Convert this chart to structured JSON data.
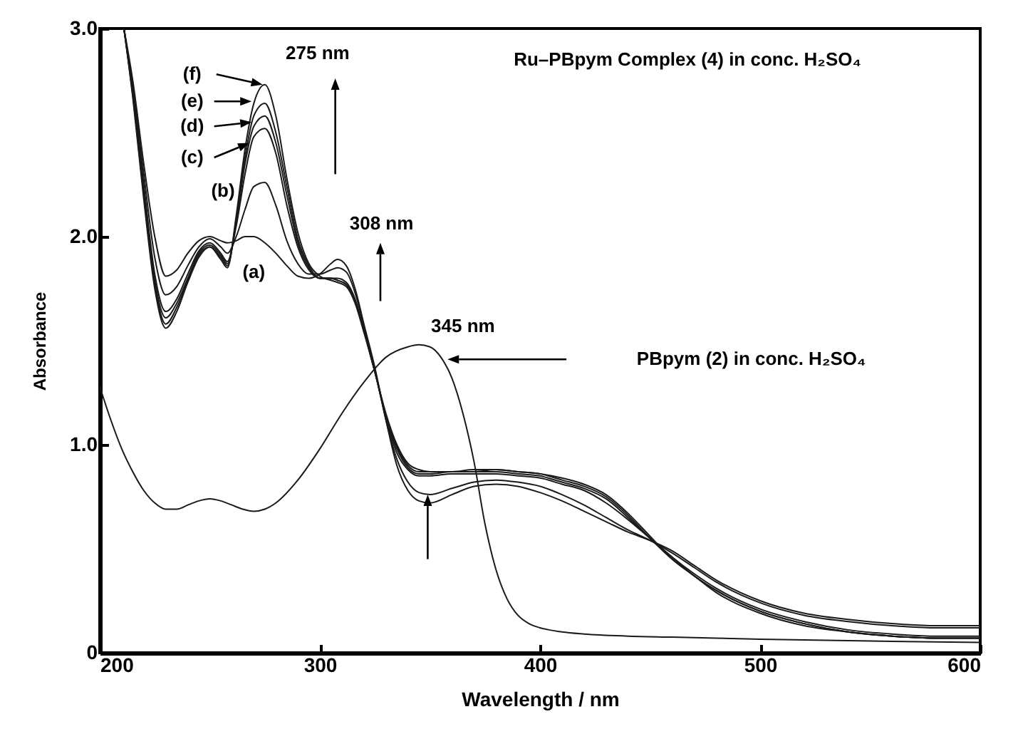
{
  "chart_data": {
    "type": "line",
    "xlabel": "Wavelength / nm",
    "ylabel": "Absorbance",
    "xlim": [
      200,
      600
    ],
    "xticks": [
      200,
      300,
      400,
      500,
      600
    ],
    "ylim": [
      0,
      3
    ],
    "yticks": [
      0,
      {
        "value": 1,
        "label": "1.0"
      },
      {
        "value": 2,
        "label": "2.0"
      },
      {
        "value": 3,
        "label": "3.0"
      }
    ],
    "x": [
      211,
      215,
      220,
      225,
      230,
      235,
      240,
      245,
      250,
      255,
      258,
      262,
      266,
      270,
      275,
      280,
      285,
      290,
      295,
      300,
      305,
      308,
      312,
      316,
      320,
      325,
      330,
      335,
      340,
      345,
      350,
      360,
      370,
      380,
      390,
      400,
      410,
      420,
      430,
      440,
      450,
      460,
      470,
      480,
      500,
      520,
      540,
      560,
      580,
      600
    ],
    "series": [
      {
        "color": "#1a1a1a",
        "values": [
          3.0,
          2.75,
          2.35,
          2.0,
          1.81,
          1.84,
          1.92,
          1.98,
          2.0,
          1.98,
          1.97,
          1.98,
          2.0,
          2.0,
          1.97,
          1.92,
          1.86,
          1.81,
          1.8,
          1.82,
          1.87,
          1.89,
          1.86,
          1.75,
          1.58,
          1.37,
          1.12,
          0.9,
          0.78,
          0.73,
          0.72,
          0.76,
          0.8,
          0.81,
          0.8,
          0.77,
          0.73,
          0.68,
          0.63,
          0.58,
          0.54,
          0.49,
          0.42,
          0.35,
          0.25,
          0.19,
          0.16,
          0.14,
          0.13,
          0.13
        ]
      },
      {
        "color": "#1a1a1a",
        "values": [
          3.0,
          2.72,
          2.3,
          1.9,
          1.72,
          1.76,
          1.86,
          1.95,
          1.99,
          1.95,
          1.92,
          2.0,
          2.13,
          2.24,
          2.26,
          2.15,
          1.98,
          1.87,
          1.82,
          1.82,
          1.84,
          1.85,
          1.83,
          1.73,
          1.57,
          1.36,
          1.12,
          0.93,
          0.82,
          0.77,
          0.76,
          0.79,
          0.82,
          0.83,
          0.82,
          0.8,
          0.76,
          0.71,
          0.65,
          0.59,
          0.54,
          0.48,
          0.41,
          0.34,
          0.24,
          0.18,
          0.15,
          0.13,
          0.12,
          0.12
        ]
      },
      {
        "color": "#1a1a1a",
        "values": [
          3.0,
          2.7,
          2.25,
          1.82,
          1.64,
          1.7,
          1.82,
          1.93,
          1.97,
          1.92,
          1.88,
          2.05,
          2.3,
          2.48,
          2.52,
          2.4,
          2.15,
          1.95,
          1.84,
          1.8,
          1.8,
          1.8,
          1.78,
          1.7,
          1.55,
          1.35,
          1.13,
          0.96,
          0.88,
          0.85,
          0.85,
          0.86,
          0.86,
          0.86,
          0.85,
          0.84,
          0.81,
          0.78,
          0.72,
          0.64,
          0.55,
          0.46,
          0.38,
          0.31,
          0.21,
          0.15,
          0.11,
          0.09,
          0.08,
          0.08
        ]
      },
      {
        "color": "#1a1a1a",
        "values": [
          3.0,
          2.69,
          2.22,
          1.79,
          1.61,
          1.68,
          1.8,
          1.92,
          1.96,
          1.91,
          1.87,
          2.07,
          2.35,
          2.53,
          2.58,
          2.45,
          2.2,
          1.97,
          1.85,
          1.8,
          1.8,
          1.79,
          1.77,
          1.69,
          1.55,
          1.35,
          1.14,
          0.98,
          0.89,
          0.86,
          0.86,
          0.87,
          0.87,
          0.87,
          0.86,
          0.85,
          0.82,
          0.79,
          0.74,
          0.65,
          0.55,
          0.46,
          0.37,
          0.3,
          0.2,
          0.14,
          0.1,
          0.08,
          0.07,
          0.07
        ]
      },
      {
        "color": "#1a1a1a",
        "values": [
          3.0,
          2.68,
          2.2,
          1.77,
          1.58,
          1.66,
          1.79,
          1.91,
          1.95,
          1.9,
          1.86,
          2.08,
          2.38,
          2.58,
          2.64,
          2.5,
          2.24,
          1.99,
          1.86,
          1.8,
          1.8,
          1.79,
          1.77,
          1.69,
          1.55,
          1.35,
          1.14,
          0.99,
          0.9,
          0.87,
          0.87,
          0.87,
          0.87,
          0.88,
          0.87,
          0.86,
          0.83,
          0.8,
          0.75,
          0.66,
          0.55,
          0.45,
          0.37,
          0.3,
          0.2,
          0.14,
          0.1,
          0.08,
          0.07,
          0.07
        ]
      },
      {
        "color": "#1a1a1a",
        "values": [
          3.0,
          2.67,
          2.18,
          1.75,
          1.56,
          1.64,
          1.78,
          1.9,
          1.95,
          1.89,
          1.85,
          2.1,
          2.42,
          2.64,
          2.73,
          2.58,
          2.28,
          2.02,
          1.87,
          1.81,
          1.79,
          1.78,
          1.76,
          1.68,
          1.54,
          1.35,
          1.15,
          1.0,
          0.91,
          0.88,
          0.87,
          0.87,
          0.88,
          0.88,
          0.87,
          0.86,
          0.84,
          0.81,
          0.76,
          0.67,
          0.56,
          0.45,
          0.37,
          0.29,
          0.19,
          0.13,
          0.1,
          0.08,
          0.07,
          0.07
        ]
      },
      {
        "color": "#1a1a1a",
        "x": [
          200,
          205,
          210,
          215,
          220,
          225,
          230,
          235,
          240,
          245,
          250,
          255,
          260,
          265,
          270,
          275,
          280,
          290,
          300,
          310,
          320,
          330,
          340,
          345,
          350,
          355,
          360,
          365,
          370,
          375,
          380,
          385,
          390,
          395,
          400,
          410,
          420,
          440,
          460,
          480,
          500,
          530,
          560,
          600
        ],
        "values": [
          1.28,
          1.12,
          0.98,
          0.87,
          0.78,
          0.72,
          0.69,
          0.69,
          0.71,
          0.73,
          0.74,
          0.73,
          0.71,
          0.69,
          0.68,
          0.69,
          0.72,
          0.83,
          0.98,
          1.15,
          1.3,
          1.42,
          1.47,
          1.48,
          1.47,
          1.42,
          1.32,
          1.15,
          0.92,
          0.62,
          0.4,
          0.26,
          0.18,
          0.14,
          0.12,
          0.1,
          0.09,
          0.08,
          0.075,
          0.07,
          0.065,
          0.06,
          0.055,
          0.05
        ]
      }
    ],
    "annotations": [
      "Ru–PBpym Complex (4) in conc. H₂SO₄",
      "PBpym (2) in conc. H₂SO₄",
      "275 nm",
      "308 nm",
      "345 nm",
      "(a)",
      "(b)",
      "(c)",
      "(d)",
      "(e)",
      "(f)"
    ]
  }
}
